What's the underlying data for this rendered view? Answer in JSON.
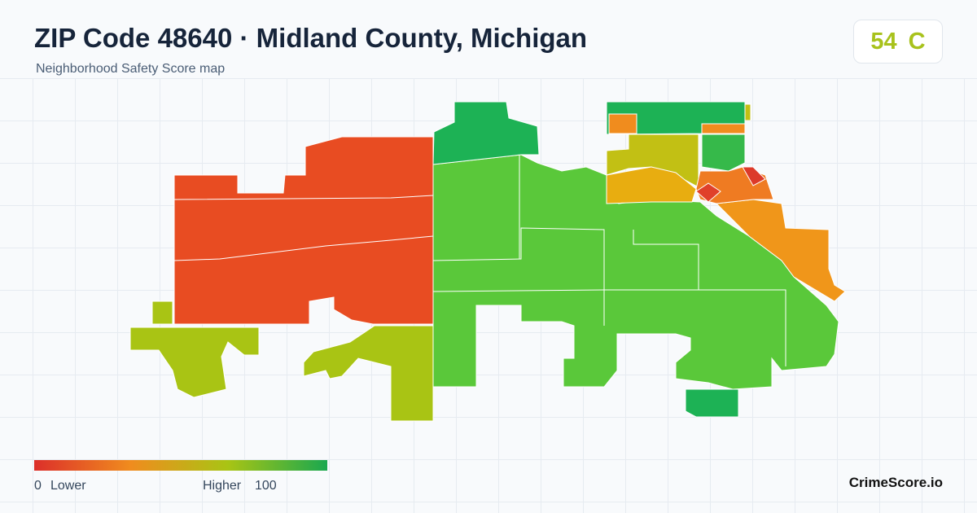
{
  "header": {
    "title": "ZIP Code 48640 · Midland County, Michigan",
    "subtitle": "Neighborhood Safety Score map"
  },
  "score": {
    "value": "54",
    "grade": "C"
  },
  "legend": {
    "min": "0",
    "min_label": "Lower",
    "max_label": "Higher",
    "max": "100"
  },
  "footer": {
    "brand": "CrimeScore.io"
  }
}
